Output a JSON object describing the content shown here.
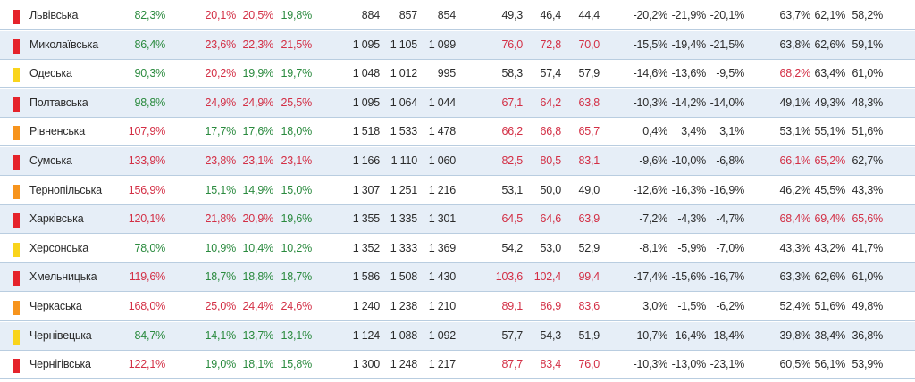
{
  "colors": {
    "red": "#e5232b",
    "orange": "#f7941d",
    "yellow": "#f9d41c",
    "good": "#2a8a3e",
    "bad": "#d32f45",
    "neutral": "#2b2b2b"
  },
  "rows": [
    {
      "marker": "red",
      "name": "Львівська",
      "c1": {
        "v": "82,3%",
        "s": "g"
      },
      "c2": [
        {
          "v": "20,1%",
          "s": "r"
        },
        {
          "v": "20,5%",
          "s": "r"
        },
        {
          "v": "19,8%",
          "s": "g"
        }
      ],
      "c3": [
        {
          "v": "884",
          "s": "k"
        },
        {
          "v": "857",
          "s": "k"
        },
        {
          "v": "854",
          "s": "k"
        }
      ],
      "c4": [
        {
          "v": "49,3",
          "s": "k"
        },
        {
          "v": "46,4",
          "s": "k"
        },
        {
          "v": "44,4",
          "s": "k"
        }
      ],
      "c5": [
        {
          "v": "-20,2%",
          "s": "k"
        },
        {
          "v": "-21,9%",
          "s": "k"
        },
        {
          "v": "-20,1%",
          "s": "k"
        }
      ],
      "c6": [
        {
          "v": "63,7%",
          "s": "k"
        },
        {
          "v": "62,1%",
          "s": "k"
        },
        {
          "v": "58,2%",
          "s": "k"
        }
      ]
    },
    {
      "marker": "red",
      "name": "Миколаївська",
      "c1": {
        "v": "86,4%",
        "s": "g"
      },
      "c2": [
        {
          "v": "23,6%",
          "s": "r"
        },
        {
          "v": "22,3%",
          "s": "r"
        },
        {
          "v": "21,5%",
          "s": "r"
        }
      ],
      "c3": [
        {
          "v": "1 095",
          "s": "k"
        },
        {
          "v": "1 105",
          "s": "k"
        },
        {
          "v": "1 099",
          "s": "k"
        }
      ],
      "c4": [
        {
          "v": "76,0",
          "s": "r"
        },
        {
          "v": "72,8",
          "s": "r"
        },
        {
          "v": "70,0",
          "s": "r"
        }
      ],
      "c5": [
        {
          "v": "-15,5%",
          "s": "k"
        },
        {
          "v": "-19,4%",
          "s": "k"
        },
        {
          "v": "-21,5%",
          "s": "k"
        }
      ],
      "c6": [
        {
          "v": "63,8%",
          "s": "k"
        },
        {
          "v": "62,6%",
          "s": "k"
        },
        {
          "v": "59,1%",
          "s": "k"
        }
      ]
    },
    {
      "marker": "yellow",
      "name": "Одеська",
      "c1": {
        "v": "90,3%",
        "s": "g"
      },
      "c2": [
        {
          "v": "20,2%",
          "s": "r"
        },
        {
          "v": "19,9%",
          "s": "g"
        },
        {
          "v": "19,7%",
          "s": "g"
        }
      ],
      "c3": [
        {
          "v": "1 048",
          "s": "k"
        },
        {
          "v": "1 012",
          "s": "k"
        },
        {
          "v": "995",
          "s": "k"
        }
      ],
      "c4": [
        {
          "v": "58,3",
          "s": "k"
        },
        {
          "v": "57,4",
          "s": "k"
        },
        {
          "v": "57,9",
          "s": "k"
        }
      ],
      "c5": [
        {
          "v": "-14,6%",
          "s": "k"
        },
        {
          "v": "-13,6%",
          "s": "k"
        },
        {
          "v": "-9,5%",
          "s": "k"
        }
      ],
      "c6": [
        {
          "v": "68,2%",
          "s": "r"
        },
        {
          "v": "63,4%",
          "s": "k"
        },
        {
          "v": "61,0%",
          "s": "k"
        }
      ]
    },
    {
      "marker": "red",
      "name": "Полтавська",
      "c1": {
        "v": "98,8%",
        "s": "g"
      },
      "c2": [
        {
          "v": "24,9%",
          "s": "r"
        },
        {
          "v": "24,9%",
          "s": "r"
        },
        {
          "v": "25,5%",
          "s": "r"
        }
      ],
      "c3": [
        {
          "v": "1 095",
          "s": "k"
        },
        {
          "v": "1 064",
          "s": "k"
        },
        {
          "v": "1 044",
          "s": "k"
        }
      ],
      "c4": [
        {
          "v": "67,1",
          "s": "r"
        },
        {
          "v": "64,2",
          "s": "r"
        },
        {
          "v": "63,8",
          "s": "r"
        }
      ],
      "c5": [
        {
          "v": "-10,3%",
          "s": "k"
        },
        {
          "v": "-14,2%",
          "s": "k"
        },
        {
          "v": "-14,0%",
          "s": "k"
        }
      ],
      "c6": [
        {
          "v": "49,1%",
          "s": "k"
        },
        {
          "v": "49,3%",
          "s": "k"
        },
        {
          "v": "48,3%",
          "s": "k"
        }
      ]
    },
    {
      "marker": "orange",
      "name": "Рівненська",
      "c1": {
        "v": "107,9%",
        "s": "r"
      },
      "c2": [
        {
          "v": "17,7%",
          "s": "g"
        },
        {
          "v": "17,6%",
          "s": "g"
        },
        {
          "v": "18,0%",
          "s": "g"
        }
      ],
      "c3": [
        {
          "v": "1 518",
          "s": "k"
        },
        {
          "v": "1 533",
          "s": "k"
        },
        {
          "v": "1 478",
          "s": "k"
        }
      ],
      "c4": [
        {
          "v": "66,2",
          "s": "r"
        },
        {
          "v": "66,8",
          "s": "r"
        },
        {
          "v": "65,7",
          "s": "r"
        }
      ],
      "c5": [
        {
          "v": "0,4%",
          "s": "k"
        },
        {
          "v": "3,4%",
          "s": "k"
        },
        {
          "v": "3,1%",
          "s": "k"
        }
      ],
      "c6": [
        {
          "v": "53,1%",
          "s": "k"
        },
        {
          "v": "55,1%",
          "s": "k"
        },
        {
          "v": "51,6%",
          "s": "k"
        }
      ]
    },
    {
      "marker": "red",
      "name": "Сумська",
      "c1": {
        "v": "133,9%",
        "s": "r"
      },
      "c2": [
        {
          "v": "23,8%",
          "s": "r"
        },
        {
          "v": "23,1%",
          "s": "r"
        },
        {
          "v": "23,1%",
          "s": "r"
        }
      ],
      "c3": [
        {
          "v": "1 166",
          "s": "k"
        },
        {
          "v": "1 110",
          "s": "k"
        },
        {
          "v": "1 060",
          "s": "k"
        }
      ],
      "c4": [
        {
          "v": "82,5",
          "s": "r"
        },
        {
          "v": "80,5",
          "s": "r"
        },
        {
          "v": "83,1",
          "s": "r"
        }
      ],
      "c5": [
        {
          "v": "-9,6%",
          "s": "k"
        },
        {
          "v": "-10,0%",
          "s": "k"
        },
        {
          "v": "-6,8%",
          "s": "k"
        }
      ],
      "c6": [
        {
          "v": "66,1%",
          "s": "r"
        },
        {
          "v": "65,2%",
          "s": "r"
        },
        {
          "v": "62,7%",
          "s": "k"
        }
      ]
    },
    {
      "marker": "orange",
      "name": "Тернопільська",
      "c1": {
        "v": "156,9%",
        "s": "r"
      },
      "c2": [
        {
          "v": "15,1%",
          "s": "g"
        },
        {
          "v": "14,9%",
          "s": "g"
        },
        {
          "v": "15,0%",
          "s": "g"
        }
      ],
      "c3": [
        {
          "v": "1 307",
          "s": "k"
        },
        {
          "v": "1 251",
          "s": "k"
        },
        {
          "v": "1 216",
          "s": "k"
        }
      ],
      "c4": [
        {
          "v": "53,1",
          "s": "k"
        },
        {
          "v": "50,0",
          "s": "k"
        },
        {
          "v": "49,0",
          "s": "k"
        }
      ],
      "c5": [
        {
          "v": "-12,6%",
          "s": "k"
        },
        {
          "v": "-16,3%",
          "s": "k"
        },
        {
          "v": "-16,9%",
          "s": "k"
        }
      ],
      "c6": [
        {
          "v": "46,2%",
          "s": "k"
        },
        {
          "v": "45,5%",
          "s": "k"
        },
        {
          "v": "43,3%",
          "s": "k"
        }
      ]
    },
    {
      "marker": "red",
      "name": "Харківська",
      "c1": {
        "v": "120,1%",
        "s": "r"
      },
      "c2": [
        {
          "v": "21,8%",
          "s": "r"
        },
        {
          "v": "20,9%",
          "s": "r"
        },
        {
          "v": "19,6%",
          "s": "g"
        }
      ],
      "c3": [
        {
          "v": "1 355",
          "s": "k"
        },
        {
          "v": "1 335",
          "s": "k"
        },
        {
          "v": "1 301",
          "s": "k"
        }
      ],
      "c4": [
        {
          "v": "64,5",
          "s": "r"
        },
        {
          "v": "64,6",
          "s": "r"
        },
        {
          "v": "63,9",
          "s": "r"
        }
      ],
      "c5": [
        {
          "v": "-7,2%",
          "s": "k"
        },
        {
          "v": "-4,3%",
          "s": "k"
        },
        {
          "v": "-4,7%",
          "s": "k"
        }
      ],
      "c6": [
        {
          "v": "68,4%",
          "s": "r"
        },
        {
          "v": "69,4%",
          "s": "r"
        },
        {
          "v": "65,6%",
          "s": "r"
        }
      ]
    },
    {
      "marker": "yellow",
      "name": "Херсонська",
      "c1": {
        "v": "78,0%",
        "s": "g"
      },
      "c2": [
        {
          "v": "10,9%",
          "s": "g"
        },
        {
          "v": "10,4%",
          "s": "g"
        },
        {
          "v": "10,2%",
          "s": "g"
        }
      ],
      "c3": [
        {
          "v": "1 352",
          "s": "k"
        },
        {
          "v": "1 333",
          "s": "k"
        },
        {
          "v": "1 369",
          "s": "k"
        }
      ],
      "c4": [
        {
          "v": "54,2",
          "s": "k"
        },
        {
          "v": "53,0",
          "s": "k"
        },
        {
          "v": "52,9",
          "s": "k"
        }
      ],
      "c5": [
        {
          "v": "-8,1%",
          "s": "k"
        },
        {
          "v": "-5,9%",
          "s": "k"
        },
        {
          "v": "-7,0%",
          "s": "k"
        }
      ],
      "c6": [
        {
          "v": "43,3%",
          "s": "k"
        },
        {
          "v": "43,2%",
          "s": "k"
        },
        {
          "v": "41,7%",
          "s": "k"
        }
      ]
    },
    {
      "marker": "red",
      "name": "Хмельницька",
      "c1": {
        "v": "119,6%",
        "s": "r"
      },
      "c2": [
        {
          "v": "18,7%",
          "s": "g"
        },
        {
          "v": "18,8%",
          "s": "g"
        },
        {
          "v": "18,7%",
          "s": "g"
        }
      ],
      "c3": [
        {
          "v": "1 586",
          "s": "k"
        },
        {
          "v": "1 508",
          "s": "k"
        },
        {
          "v": "1 430",
          "s": "k"
        }
      ],
      "c4": [
        {
          "v": "103,6",
          "s": "r"
        },
        {
          "v": "102,4",
          "s": "r"
        },
        {
          "v": "99,4",
          "s": "r"
        }
      ],
      "c5": [
        {
          "v": "-17,4%",
          "s": "k"
        },
        {
          "v": "-15,6%",
          "s": "k"
        },
        {
          "v": "-16,7%",
          "s": "k"
        }
      ],
      "c6": [
        {
          "v": "63,3%",
          "s": "k"
        },
        {
          "v": "62,6%",
          "s": "k"
        },
        {
          "v": "61,0%",
          "s": "k"
        }
      ]
    },
    {
      "marker": "orange",
      "name": "Черкаська",
      "c1": {
        "v": "168,0%",
        "s": "r"
      },
      "c2": [
        {
          "v": "25,0%",
          "s": "r"
        },
        {
          "v": "24,4%",
          "s": "r"
        },
        {
          "v": "24,6%",
          "s": "r"
        }
      ],
      "c3": [
        {
          "v": "1 240",
          "s": "k"
        },
        {
          "v": "1 238",
          "s": "k"
        },
        {
          "v": "1 210",
          "s": "k"
        }
      ],
      "c4": [
        {
          "v": "89,1",
          "s": "r"
        },
        {
          "v": "86,9",
          "s": "r"
        },
        {
          "v": "83,6",
          "s": "r"
        }
      ],
      "c5": [
        {
          "v": "3,0%",
          "s": "k"
        },
        {
          "v": "-1,5%",
          "s": "k"
        },
        {
          "v": "-6,2%",
          "s": "k"
        }
      ],
      "c6": [
        {
          "v": "52,4%",
          "s": "k"
        },
        {
          "v": "51,6%",
          "s": "k"
        },
        {
          "v": "49,8%",
          "s": "k"
        }
      ]
    },
    {
      "marker": "yellow",
      "name": "Чернівецька",
      "c1": {
        "v": "84,7%",
        "s": "g"
      },
      "c2": [
        {
          "v": "14,1%",
          "s": "g"
        },
        {
          "v": "13,7%",
          "s": "g"
        },
        {
          "v": "13,1%",
          "s": "g"
        }
      ],
      "c3": [
        {
          "v": "1 124",
          "s": "k"
        },
        {
          "v": "1 088",
          "s": "k"
        },
        {
          "v": "1 092",
          "s": "k"
        }
      ],
      "c4": [
        {
          "v": "57,7",
          "s": "k"
        },
        {
          "v": "54,3",
          "s": "k"
        },
        {
          "v": "51,9",
          "s": "k"
        }
      ],
      "c5": [
        {
          "v": "-10,7%",
          "s": "k"
        },
        {
          "v": "-16,4%",
          "s": "k"
        },
        {
          "v": "-18,4%",
          "s": "k"
        }
      ],
      "c6": [
        {
          "v": "39,8%",
          "s": "k"
        },
        {
          "v": "38,4%",
          "s": "k"
        },
        {
          "v": "36,8%",
          "s": "k"
        }
      ]
    },
    {
      "marker": "red",
      "name": "Чернігівська",
      "c1": {
        "v": "122,1%",
        "s": "r"
      },
      "c2": [
        {
          "v": "19,0%",
          "s": "g"
        },
        {
          "v": "18,1%",
          "s": "g"
        },
        {
          "v": "15,8%",
          "s": "g"
        }
      ],
      "c3": [
        {
          "v": "1 300",
          "s": "k"
        },
        {
          "v": "1 248",
          "s": "k"
        },
        {
          "v": "1 217",
          "s": "k"
        }
      ],
      "c4": [
        {
          "v": "87,7",
          "s": "r"
        },
        {
          "v": "83,4",
          "s": "r"
        },
        {
          "v": "76,0",
          "s": "r"
        }
      ],
      "c5": [
        {
          "v": "-10,3%",
          "s": "k"
        },
        {
          "v": "-13,0%",
          "s": "k"
        },
        {
          "v": "-23,1%",
          "s": "k"
        }
      ],
      "c6": [
        {
          "v": "60,5%",
          "s": "k"
        },
        {
          "v": "56,1%",
          "s": "k"
        },
        {
          "v": "53,9%",
          "s": "k"
        }
      ]
    }
  ]
}
